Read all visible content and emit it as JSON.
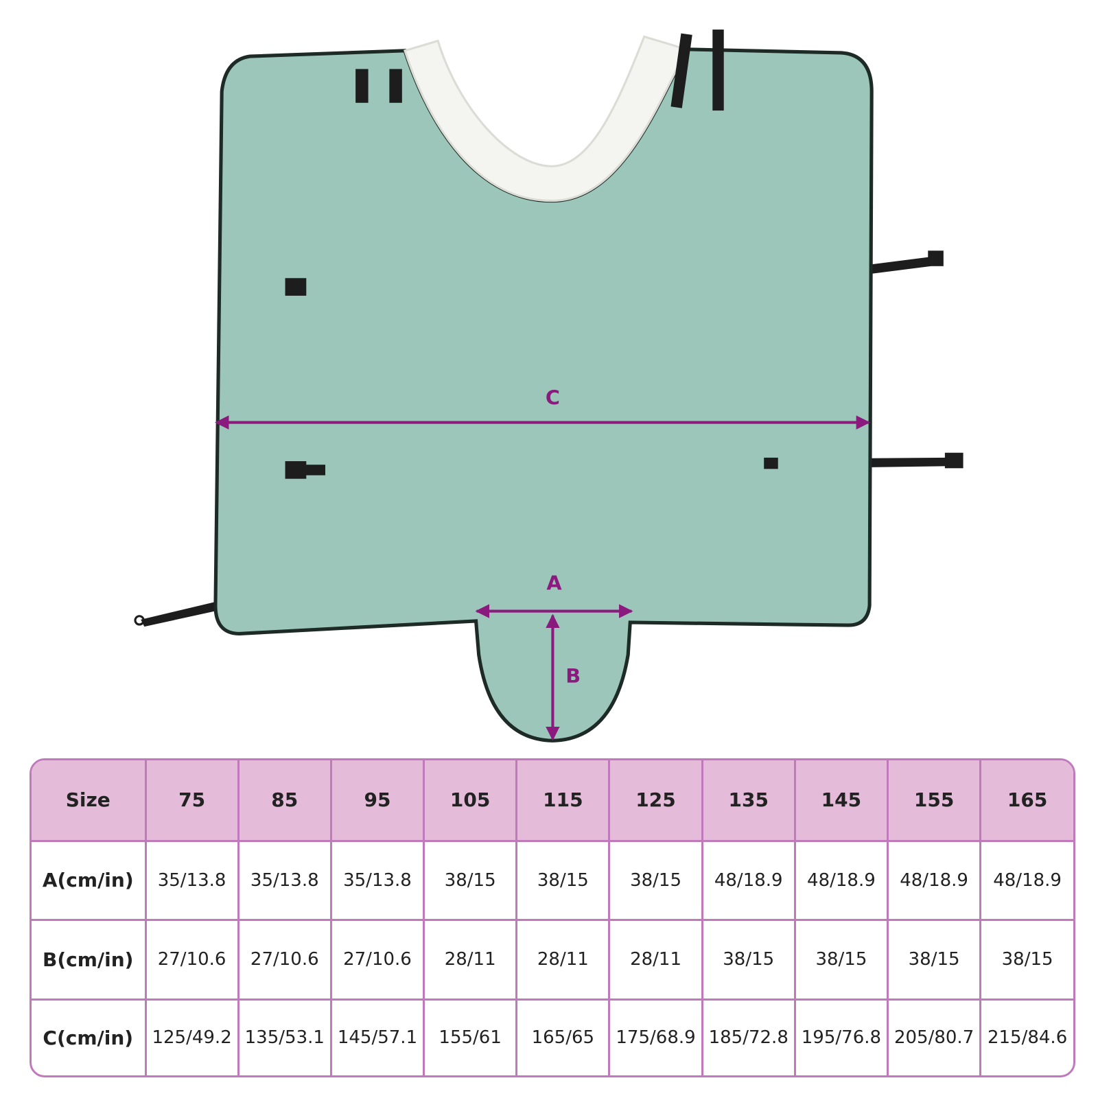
{
  "diagram": {
    "labels": {
      "c": "C",
      "a": "A",
      "b": "B"
    }
  },
  "table": {
    "header": [
      "Size",
      "75",
      "85",
      "95",
      "105",
      "115",
      "125",
      "135",
      "145",
      "155",
      "165"
    ],
    "rows": [
      [
        "A(cm/in)",
        "35/13.8",
        "35/13.8",
        "35/13.8",
        "38/15",
        "38/15",
        "38/15",
        "48/18.9",
        "48/18.9",
        "48/18.9",
        "48/18.9"
      ],
      [
        "B(cm/in)",
        "27/10.6",
        "27/10.6",
        "27/10.6",
        "28/11",
        "28/11",
        "28/11",
        "38/15",
        "38/15",
        "38/15",
        "38/15"
      ],
      [
        "C(cm/in)",
        "125/49.2",
        "135/53.1",
        "145/57.1",
        "155/61",
        "165/65",
        "175/68.9",
        "185/72.8",
        "195/76.8",
        "205/80.7",
        "215/84.6"
      ]
    ]
  }
}
